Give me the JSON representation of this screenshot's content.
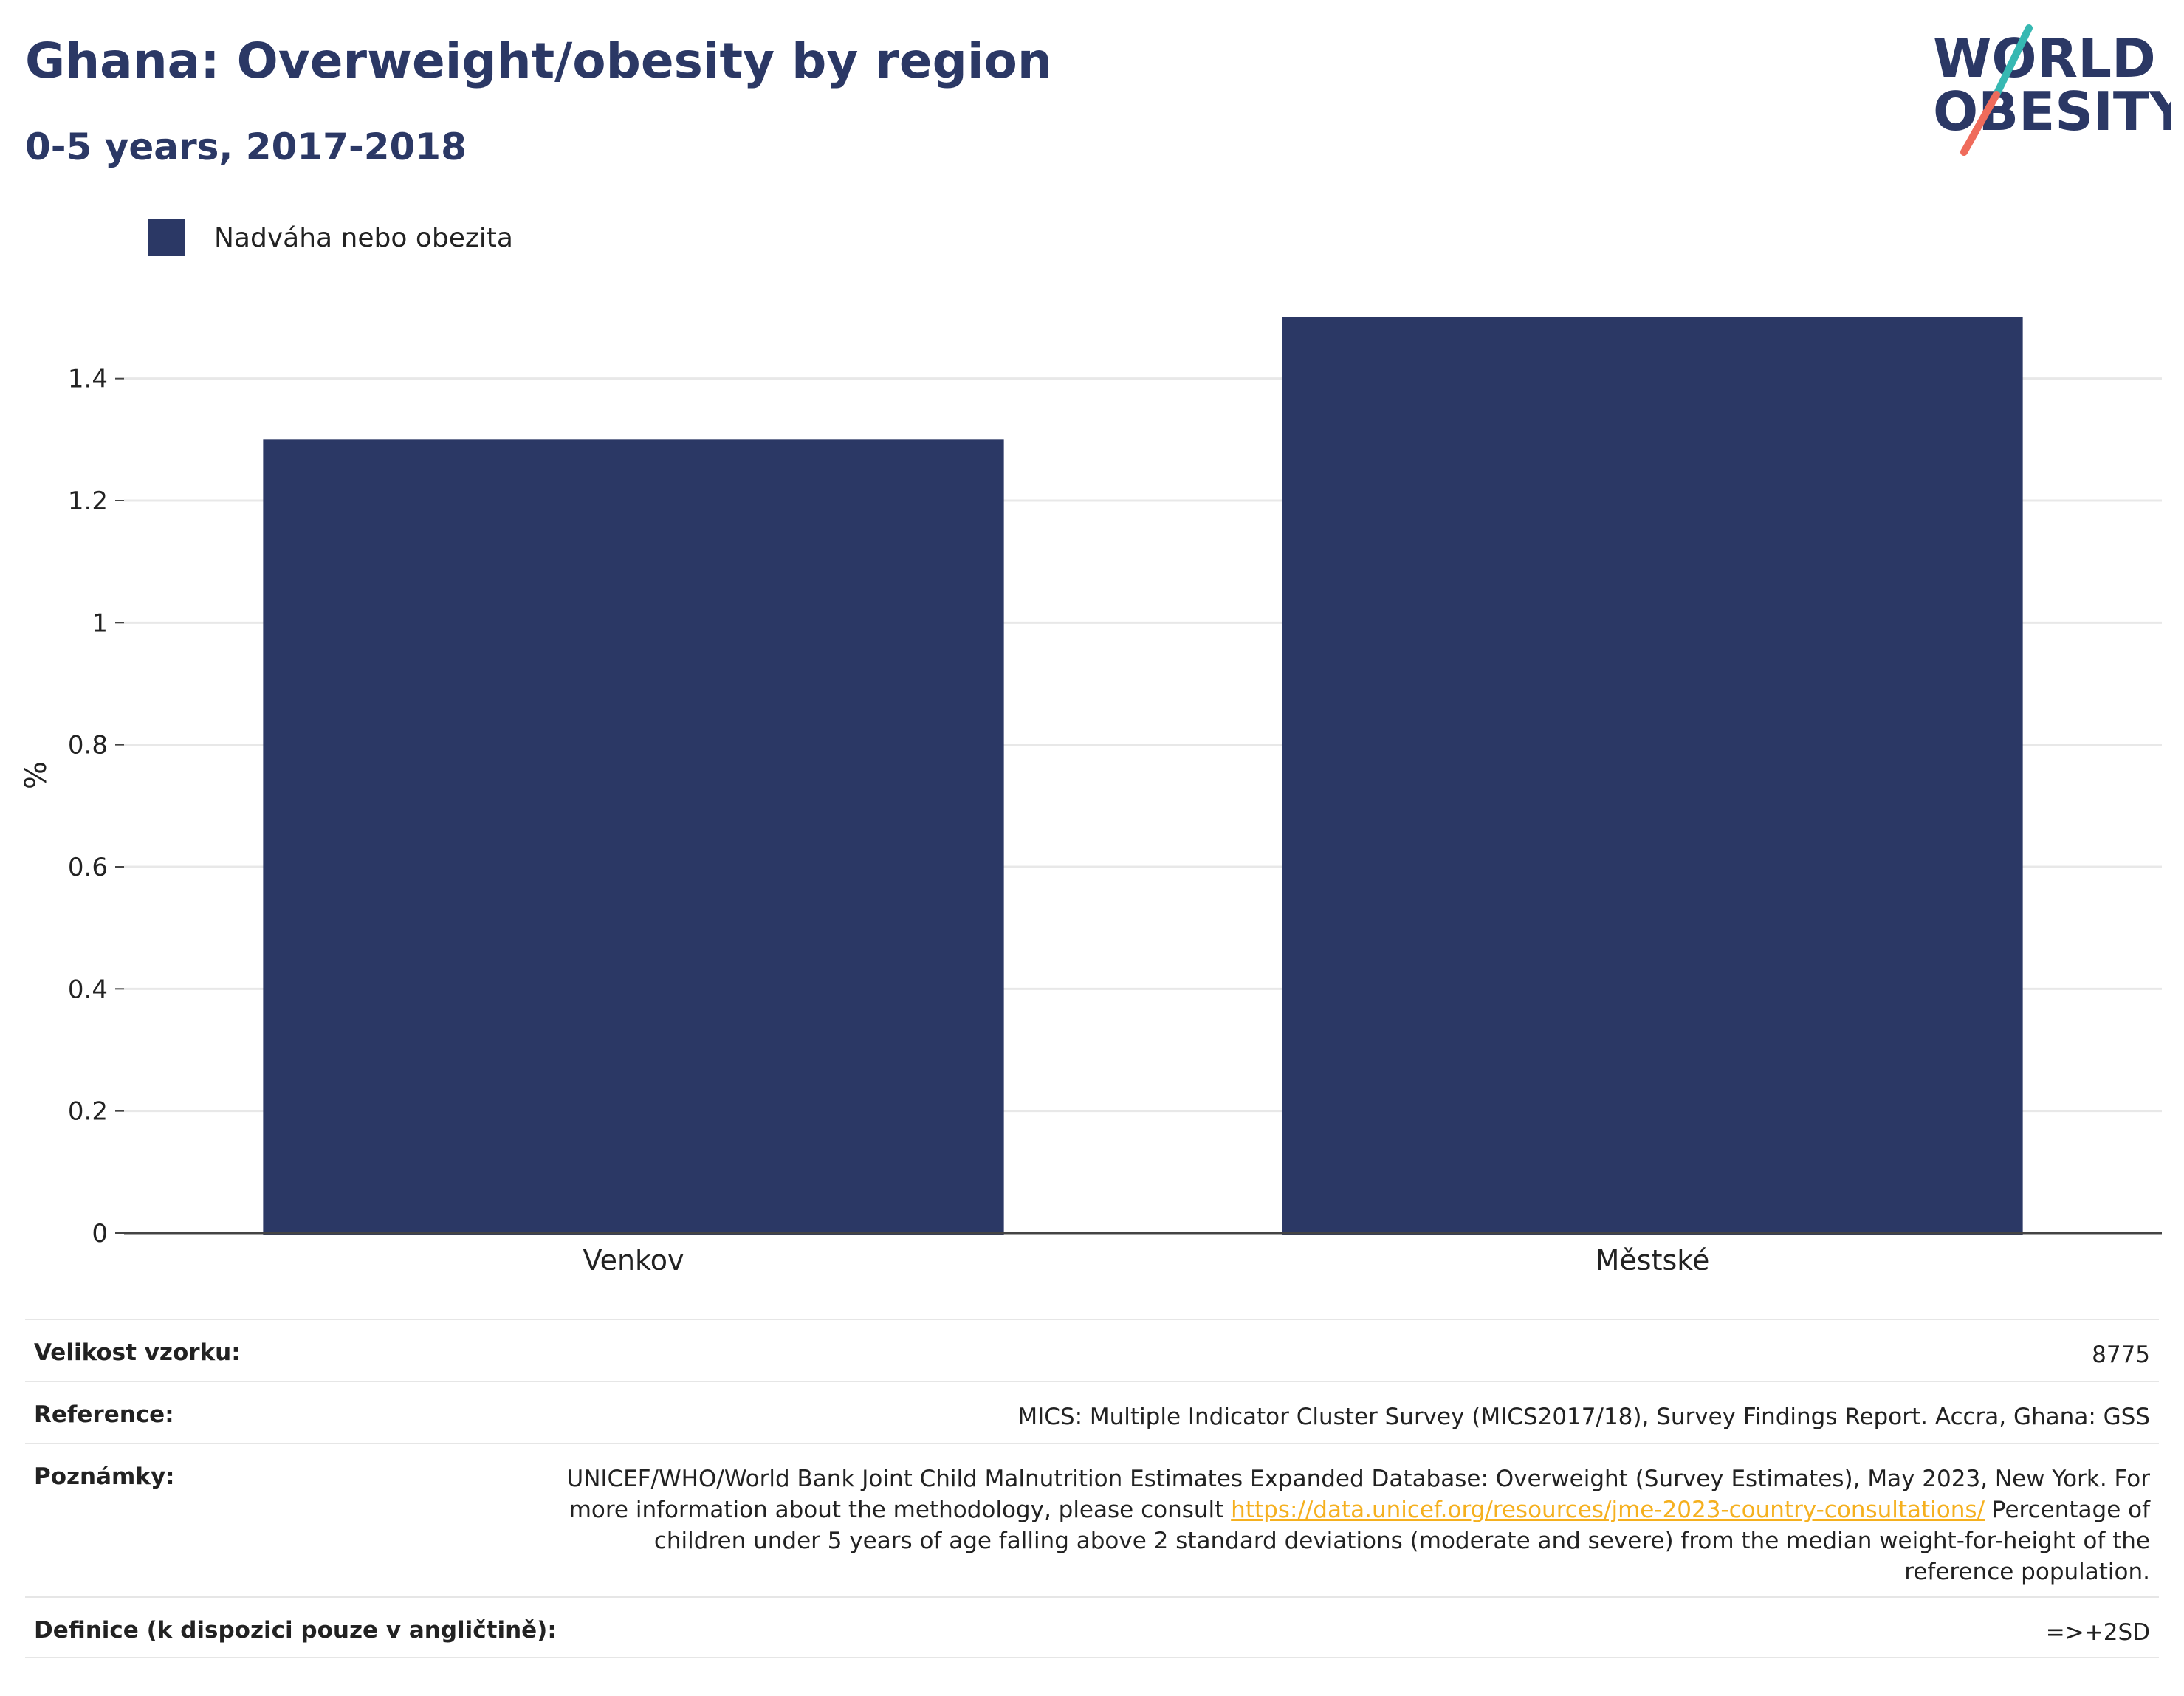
{
  "header": {
    "title": "Ghana: Overweight/obesity by region",
    "subtitle": "0-5 years, 2017-2018"
  },
  "logo": {
    "line1": "WORLD",
    "line2": "OBESITY",
    "colors": {
      "text": "#2b3865",
      "teal": "#36b8b2",
      "coral": "#ef6b5b"
    }
  },
  "colors": {
    "bar": "#2b3865",
    "grid": "#e8e8e8",
    "axis": "#444444"
  },
  "chart_data": {
    "type": "bar",
    "categories": [
      "Venkov",
      "Městské"
    ],
    "series": [
      {
        "name": "Nadváha nebo obezita",
        "values": [
          1.3,
          1.5
        ]
      }
    ],
    "ylabel": "%",
    "ylim": [
      0,
      1.5
    ],
    "yticks": [
      0,
      0.2,
      0.4,
      0.6,
      0.8,
      1,
      1.2,
      1.4
    ],
    "ytick_labels": [
      "0",
      "0.2",
      "0.4",
      "0.6",
      "0.8",
      "1",
      "1.2",
      "1.4"
    ],
    "grid": true,
    "legend_position": "top-left"
  },
  "info": {
    "sample_size_label": "Velikost vzorku:",
    "sample_size_value": "8775",
    "reference_label": "Reference:",
    "reference_value": "MICS: Multiple Indicator Cluster Survey (MICS2017/18), Survey Findings Report. Accra, Ghana: GSS",
    "notes_label": "Poznámky:",
    "notes_text_1": "UNICEF/WHO/World Bank Joint Child Malnutrition Estimates Expanded Database: Overweight (Survey Estimates), May 2023, New York. For more information about the methodology, please consult ",
    "notes_link": "https://data.unicef.org/resources/jme-2023-country-consultations/",
    "notes_text_2": " Percentage of children under 5 years of age falling above 2 standard deviations (moderate and severe) from the median weight-for-height of the reference population.",
    "definition_label": "Definice (k dispozici pouze v angličtině):",
    "definition_value": "=>+2SD"
  }
}
